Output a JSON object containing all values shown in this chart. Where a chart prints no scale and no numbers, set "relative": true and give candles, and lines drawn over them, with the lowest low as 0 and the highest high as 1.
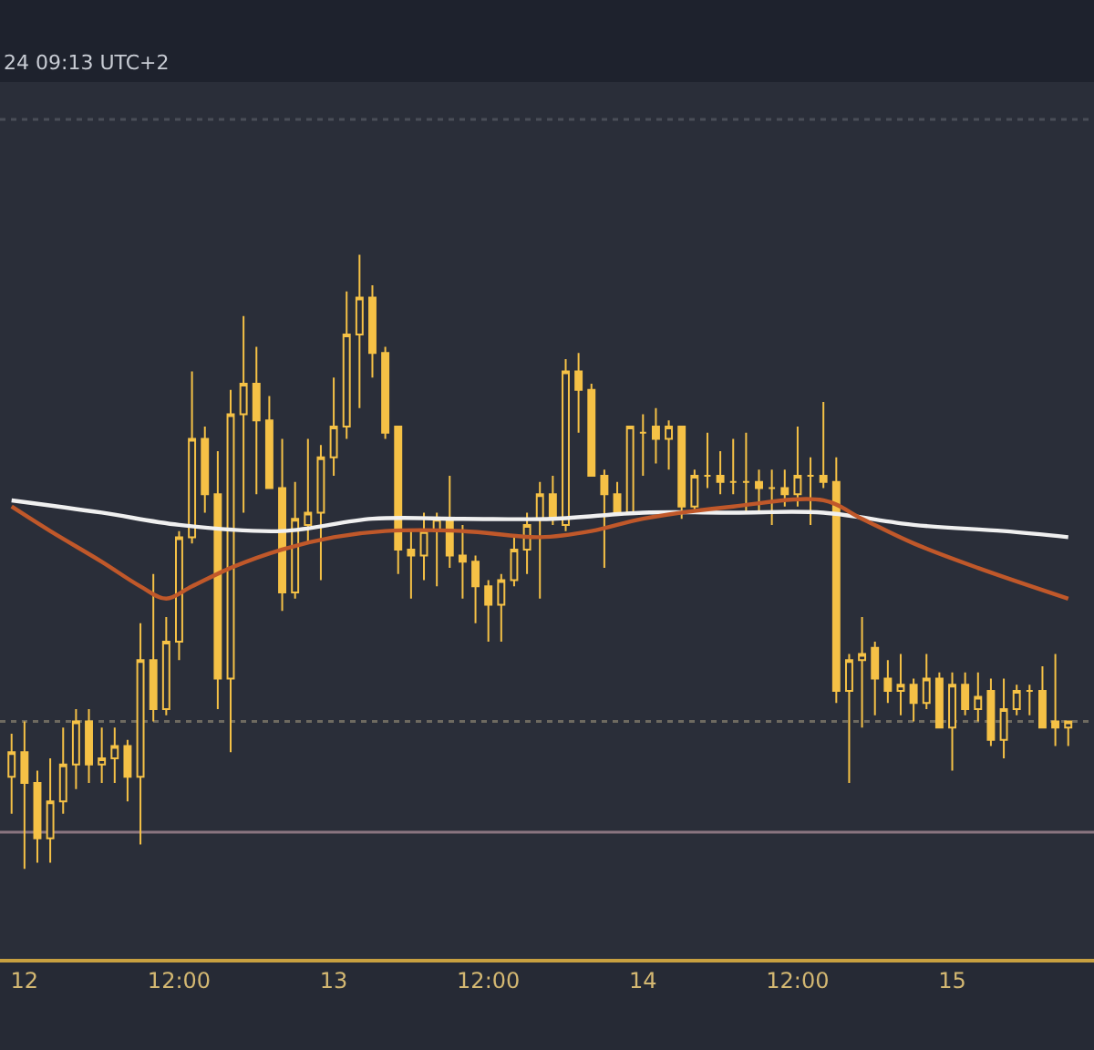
{
  "chart_data": {
    "type": "candlestick",
    "relative": true,
    "color": "#f5c146",
    "annotations": [
      "24 09:13 UTC+2"
    ],
    "categories": [
      null,
      "12",
      null,
      null,
      null,
      null,
      null,
      null,
      null,
      null,
      null,
      null,
      null,
      "12:00",
      null,
      null,
      null,
      null,
      null,
      null,
      null,
      null,
      null,
      null,
      null,
      "13",
      null,
      null,
      null,
      null,
      null,
      null,
      null,
      null,
      null,
      null,
      null,
      "12:00",
      null,
      null,
      null,
      null,
      null,
      null,
      null,
      null,
      null,
      null,
      null,
      "14",
      null,
      null,
      null,
      null,
      null,
      null,
      null,
      null,
      null,
      null,
      null,
      "12:00",
      null,
      null,
      null,
      null,
      null,
      null,
      null,
      null,
      null,
      null,
      null,
      "15",
      null,
      null,
      null,
      null,
      null,
      null,
      null,
      null,
      null
    ],
    "ohlc": [
      [
        0.15,
        0.22,
        0.09,
        0.19
      ],
      [
        0.19,
        0.24,
        0,
        0.14
      ],
      [
        0.14,
        0.16,
        0.01,
        0.05
      ],
      [
        0.05,
        0.18,
        0.01,
        0.11
      ],
      [
        0.11,
        0.23,
        0.09,
        0.17
      ],
      [
        0.17,
        0.26,
        0.13,
        0.24
      ],
      [
        0.24,
        0.26,
        0.14,
        0.17
      ],
      [
        0.17,
        0.23,
        0.14,
        0.18
      ],
      [
        0.18,
        0.23,
        0.14,
        0.2
      ],
      [
        0.2,
        0.21,
        0.11,
        0.15
      ],
      [
        0.15,
        0.4,
        0.04,
        0.34
      ],
      [
        0.34,
        0.48,
        0.24,
        0.26
      ],
      [
        0.26,
        0.41,
        0.25,
        0.37
      ],
      [
        0.37,
        0.55,
        0.34,
        0.54
      ],
      [
        0.54,
        0.81,
        0.53,
        0.7
      ],
      [
        0.7,
        0.72,
        0.58,
        0.61
      ],
      [
        0.61,
        0.68,
        0.26,
        0.31
      ],
      [
        0.31,
        0.78,
        0.19,
        0.74
      ],
      [
        0.74,
        0.9,
        0.58,
        0.79
      ],
      [
        0.79,
        0.85,
        0.61,
        0.73
      ],
      [
        0.73,
        0.77,
        0.62,
        0.62
      ],
      [
        0.62,
        0.7,
        0.42,
        0.45
      ],
      [
        0.45,
        0.63,
        0.44,
        0.57
      ],
      [
        0.56,
        0.7,
        0.53,
        0.58
      ],
      [
        0.58,
        0.69,
        0.47,
        0.67
      ],
      [
        0.67,
        0.8,
        0.64,
        0.72
      ],
      [
        0.72,
        0.94,
        0.7,
        0.87
      ],
      [
        0.87,
        1.0,
        0.75,
        0.93
      ],
      [
        0.93,
        0.95,
        0.8,
        0.84
      ],
      [
        0.84,
        0.85,
        0.7,
        0.71
      ],
      [
        0.72,
        0.72,
        0.48,
        0.52
      ],
      [
        0.52,
        0.55,
        0.44,
        0.51
      ],
      [
        0.51,
        0.58,
        0.47,
        0.55
      ],
      [
        0.55,
        0.58,
        0.46,
        0.57
      ],
      [
        0.57,
        0.64,
        0.49,
        0.51
      ],
      [
        0.51,
        0.56,
        0.44,
        0.5
      ],
      [
        0.5,
        0.51,
        0.4,
        0.46
      ],
      [
        0.46,
        0.47,
        0.37,
        0.43
      ],
      [
        0.43,
        0.48,
        0.37,
        0.47
      ],
      [
        0.47,
        0.54,
        0.46,
        0.52
      ],
      [
        0.52,
        0.58,
        0.48,
        0.56
      ],
      [
        0.57,
        0.63,
        0.44,
        0.61
      ],
      [
        0.61,
        0.64,
        0.56,
        0.57
      ],
      [
        0.56,
        0.83,
        0.55,
        0.81
      ],
      [
        0.81,
        0.84,
        0.71,
        0.78
      ],
      [
        0.78,
        0.79,
        0.64,
        0.64
      ],
      [
        0.64,
        0.65,
        0.49,
        0.61
      ],
      [
        0.61,
        0.63,
        0.58,
        0.58
      ],
      [
        0.58,
        0.72,
        0.58,
        0.72
      ],
      [
        0.71,
        0.74,
        0.64,
        0.71
      ],
      [
        0.72,
        0.75,
        0.66,
        0.7
      ],
      [
        0.7,
        0.73,
        0.65,
        0.72
      ],
      [
        0.72,
        0.72,
        0.57,
        0.59
      ],
      [
        0.59,
        0.65,
        0.58,
        0.64
      ],
      [
        0.64,
        0.71,
        0.62,
        0.64
      ],
      [
        0.64,
        0.68,
        0.61,
        0.63
      ],
      [
        0.63,
        0.7,
        0.61,
        0.63
      ],
      [
        0.63,
        0.71,
        0.58,
        0.63
      ],
      [
        0.63,
        0.65,
        0.58,
        0.62
      ],
      [
        0.62,
        0.65,
        0.56,
        0.62
      ],
      [
        0.62,
        0.65,
        0.59,
        0.61
      ],
      [
        0.61,
        0.72,
        0.59,
        0.64
      ],
      [
        0.64,
        0.67,
        0.56,
        0.64
      ],
      [
        0.64,
        0.76,
        0.62,
        0.63
      ],
      [
        0.63,
        0.67,
        0.27,
        0.29
      ],
      [
        0.29,
        0.35,
        0.14,
        0.34
      ],
      [
        0.34,
        0.41,
        0.23,
        0.35
      ],
      [
        0.36,
        0.37,
        0.25,
        0.31
      ],
      [
        0.31,
        0.34,
        0.27,
        0.29
      ],
      [
        0.29,
        0.35,
        0.25,
        0.3
      ],
      [
        0.3,
        0.31,
        0.24,
        0.27
      ],
      [
        0.27,
        0.35,
        0.26,
        0.31
      ],
      [
        0.31,
        0.32,
        0.23,
        0.23
      ],
      [
        0.23,
        0.32,
        0.16,
        0.3
      ],
      [
        0.3,
        0.32,
        0.25,
        0.26
      ],
      [
        0.26,
        0.32,
        0.24,
        0.28
      ],
      [
        0.29,
        0.31,
        0.2,
        0.21
      ],
      [
        0.21,
        0.31,
        0.18,
        0.26
      ],
      [
        0.26,
        0.3,
        0.25,
        0.29
      ],
      [
        0.29,
        0.3,
        0.25,
        0.29
      ],
      [
        0.29,
        0.33,
        0.23,
        0.23
      ],
      [
        0.24,
        0.35,
        0.2,
        0.23
      ],
      [
        0.23,
        0.24,
        0.2,
        0.24
      ]
    ],
    "series": [
      {
        "type": "line",
        "color": "#f0f0f0",
        "values": [
          0.6,
          null,
          null,
          null,
          null,
          null,
          null,
          0.58,
          null,
          null,
          null,
          null,
          null,
          0.56,
          null,
          null,
          null,
          null,
          null,
          null,
          null,
          0.55,
          null,
          null,
          null,
          null,
          null,
          null,
          0.57,
          null,
          null,
          null,
          null,
          null,
          null,
          0.57,
          null,
          null,
          null,
          null,
          null,
          null,
          0.57,
          null,
          null,
          null,
          null,
          null,
          null,
          0.58,
          null,
          null,
          null,
          null,
          null,
          null,
          0.58,
          null,
          null,
          null,
          null,
          null,
          null,
          0.58,
          null,
          null,
          null,
          null,
          null,
          null,
          0.56,
          null,
          null,
          null,
          null,
          null,
          null,
          0.55,
          null,
          null,
          null,
          null,
          0.54
        ]
      },
      {
        "type": "line",
        "color": "#c0582a",
        "values": [
          0.59,
          null,
          null,
          0.55,
          null,
          null,
          null,
          0.5,
          null,
          null,
          0.46,
          null,
          0.44,
          null,
          0.46,
          null,
          null,
          0.49,
          null,
          null,
          null,
          0.52,
          null,
          null,
          null,
          0.54,
          null,
          null,
          null,
          0.55,
          null,
          null,
          null,
          null,
          null,
          0.55,
          null,
          null,
          null,
          null,
          null,
          0.54,
          null,
          null,
          null,
          0.55,
          null,
          null,
          null,
          0.57,
          null,
          null,
          null,
          null,
          null,
          null,
          0.59,
          null,
          null,
          null,
          null,
          null,
          null,
          0.6,
          null,
          null,
          0.57,
          null,
          null,
          null,
          0.53,
          null,
          null,
          null,
          null,
          0.49,
          null,
          null,
          null,
          null,
          null,
          null,
          0.44
        ]
      }
    ],
    "ref_lines": [
      {
        "axis": "y",
        "value": 0.24,
        "color": "#6e6a60",
        "line_style": "dotted"
      },
      {
        "axis": "y",
        "value": 0.06,
        "color": "#8a7580",
        "line_style": "solid"
      },
      {
        "axis": "y",
        "value": 1.22,
        "color": "#4a4e58",
        "line_style": "dotted"
      }
    ],
    "tick_labels": "x"
  }
}
